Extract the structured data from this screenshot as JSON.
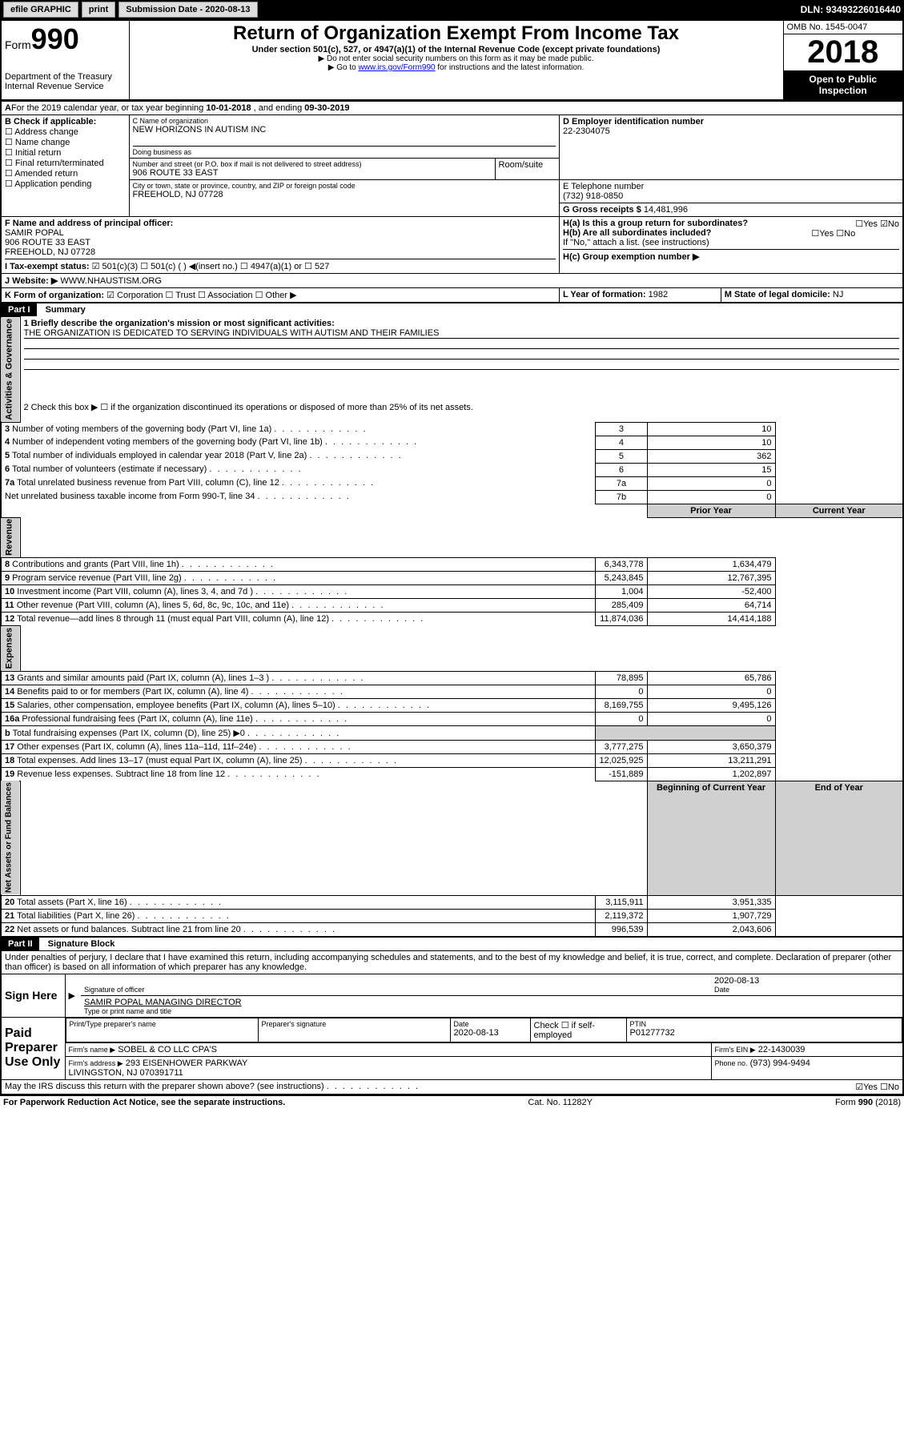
{
  "header": {
    "efile": "efile GRAPHIC",
    "print": "print",
    "sub_label": "Submission Date - 2020-08-13",
    "dln": "DLN: 93493226016440"
  },
  "form": {
    "form_label": "Form",
    "form_num": "990",
    "dept": "Department of the Treasury\nInternal Revenue Service",
    "title": "Return of Organization Exempt From Income Tax",
    "subtitle": "Under section 501(c), 527, or 4947(a)(1) of the Internal Revenue Code (except private foundations)",
    "note1": "▶ Do not enter social security numbers on this form as it may be made public.",
    "note2_a": "▶ Go to ",
    "note2_link": "www.irs.gov/Form990",
    "note2_b": " for instructions and the latest information.",
    "omb": "OMB No. 1545-0047",
    "year": "2018",
    "open": "Open to Public Inspection"
  },
  "A": {
    "text_a": "For the 2019 calendar year, or tax year beginning ",
    "begin": "10-01-2018",
    "text_b": " , and ending ",
    "end": "09-30-2019"
  },
  "B": {
    "label": "B Check if applicable:",
    "opts": [
      "☐ Address change",
      "☐ Name change",
      "☐ Initial return",
      "☐ Final return/terminated",
      "☐ Amended return",
      "☐ Application pending"
    ]
  },
  "C": {
    "name_label": "C Name of organization",
    "name": "NEW HORIZONS IN AUTISM INC",
    "dba_label": "Doing business as",
    "street_label": "Number and street (or P.O. box if mail is not delivered to street address)",
    "room_label": "Room/suite",
    "street": "906 ROUTE 33 EAST",
    "city_label": "City or town, state or province, country, and ZIP or foreign postal code",
    "city": "FREEHOLD, NJ 07728"
  },
  "D": {
    "label": "D Employer identification number",
    "val": "22-2304075"
  },
  "E": {
    "label": "E Telephone number",
    "val": "(732) 918-0850"
  },
  "G": {
    "label": "G Gross receipts $",
    "val": "14,481,996"
  },
  "F": {
    "label": "F  Name and address of principal officer:",
    "name": "SAMIR POPAL",
    "street": "906 ROUTE 33 EAST",
    "city": "FREEHOLD, NJ  07728"
  },
  "H": {
    "a": "H(a)  Is this a group return for subordinates?",
    "a_ans": "☐Yes ☑No",
    "b": "H(b) Are all subordinates included?",
    "b_ans": "☐Yes ☐No",
    "b_note": "If \"No,\" attach a list. (see instructions)",
    "c": "H(c)  Group exemption number ▶"
  },
  "I": {
    "label": "I   Tax-exempt status:",
    "opts": "☑ 501(c)(3)   ☐ 501(c) (  ) ◀(insert no.)     ☐ 4947(a)(1) or   ☐ 527"
  },
  "J": {
    "label": "J  Website: ▶",
    "val": "WWW.NHAUSTISM.ORG"
  },
  "K": {
    "label": "K Form of organization:",
    "opts": "☑ Corporation  ☐ Trust  ☐ Association  ☐ Other ▶"
  },
  "L": {
    "label": "L Year of formation:",
    "val": "1982"
  },
  "M": {
    "label": "M State of legal domicile:",
    "val": "NJ"
  },
  "part1": {
    "label": "Part I",
    "title": "Summary",
    "q1": "1  Briefly describe the organization's mission or most significant activities:",
    "q1_ans": "THE ORGANIZATION IS DEDICATED TO SERVING INDIVIDUALS WITH AUTISM AND THEIR FAMILIES",
    "q2": "2   Check this box ▶ ☐ if the organization discontinued its operations or disposed of more than 25% of its net assets.",
    "side_act": "Activities & Governance",
    "side_rev": "Revenue",
    "side_exp": "Expenses",
    "side_net": "Net Assets or Fund Balances",
    "hdr_prior": "Prior Year",
    "hdr_curr": "Current Year",
    "hdr_boy": "Beginning of Current Year",
    "hdr_eoy": "End of Year",
    "rows_gov": [
      {
        "n": "3",
        "t": "Number of voting members of the governing body (Part VI, line 1a)",
        "b": "3",
        "v": "10"
      },
      {
        "n": "4",
        "t": "Number of independent voting members of the governing body (Part VI, line 1b)",
        "b": "4",
        "v": "10"
      },
      {
        "n": "5",
        "t": "Total number of individuals employed in calendar year 2018 (Part V, line 2a)",
        "b": "5",
        "v": "362"
      },
      {
        "n": "6",
        "t": "Total number of volunteers (estimate if necessary)",
        "b": "6",
        "v": "15"
      },
      {
        "n": "7a",
        "t": "Total unrelated business revenue from Part VIII, column (C), line 12",
        "b": "7a",
        "v": "0"
      },
      {
        "n": "",
        "t": "Net unrelated business taxable income from Form 990-T, line 34",
        "b": "7b",
        "v": "0"
      }
    ],
    "rows_rev": [
      {
        "n": "8",
        "t": "Contributions and grants (Part VIII, line 1h)",
        "p": "6,343,778",
        "c": "1,634,479"
      },
      {
        "n": "9",
        "t": "Program service revenue (Part VIII, line 2g)",
        "p": "5,243,845",
        "c": "12,767,395"
      },
      {
        "n": "10",
        "t": "Investment income (Part VIII, column (A), lines 3, 4, and 7d )",
        "p": "1,004",
        "c": "-52,400"
      },
      {
        "n": "11",
        "t": "Other revenue (Part VIII, column (A), lines 5, 6d, 8c, 9c, 10c, and 11e)",
        "p": "285,409",
        "c": "64,714"
      },
      {
        "n": "12",
        "t": "Total revenue—add lines 8 through 11 (must equal Part VIII, column (A), line 12)",
        "p": "11,874,036",
        "c": "14,414,188"
      }
    ],
    "rows_exp": [
      {
        "n": "13",
        "t": "Grants and similar amounts paid (Part IX, column (A), lines 1–3 )",
        "p": "78,895",
        "c": "65,786"
      },
      {
        "n": "14",
        "t": "Benefits paid to or for members (Part IX, column (A), line 4)",
        "p": "0",
        "c": "0"
      },
      {
        "n": "15",
        "t": "Salaries, other compensation, employee benefits (Part IX, column (A), lines 5–10)",
        "p": "8,169,755",
        "c": "9,495,126"
      },
      {
        "n": "16a",
        "t": "Professional fundraising fees (Part IX, column (A), line 11e)",
        "p": "0",
        "c": "0"
      },
      {
        "n": "b",
        "t": "Total fundraising expenses (Part IX, column (D), line 25) ▶0",
        "p": "",
        "c": ""
      },
      {
        "n": "17",
        "t": "Other expenses (Part IX, column (A), lines 11a–11d, 11f–24e)",
        "p": "3,777,275",
        "c": "3,650,379"
      },
      {
        "n": "18",
        "t": "Total expenses. Add lines 13–17 (must equal Part IX, column (A), line 25)",
        "p": "12,025,925",
        "c": "13,211,291"
      },
      {
        "n": "19",
        "t": "Revenue less expenses. Subtract line 18 from line 12",
        "p": "-151,889",
        "c": "1,202,897"
      }
    ],
    "rows_net": [
      {
        "n": "20",
        "t": "Total assets (Part X, line 16)",
        "p": "3,115,911",
        "c": "3,951,335"
      },
      {
        "n": "21",
        "t": "Total liabilities (Part X, line 26)",
        "p": "2,119,372",
        "c": "1,907,729"
      },
      {
        "n": "22",
        "t": "Net assets or fund balances. Subtract line 21 from line 20",
        "p": "996,539",
        "c": "2,043,606"
      }
    ]
  },
  "part2": {
    "label": "Part II",
    "title": "Signature Block",
    "perjury": "Under penalties of perjury, I declare that I have examined this return, including accompanying schedules and statements, and to the best of my knowledge and belief, it is true, correct, and complete. Declaration of preparer (other than officer) is based on all information of which preparer has any knowledge.",
    "sign_here": "Sign Here",
    "sig_officer": "Signature of officer",
    "sig_date": "2020-08-13",
    "sig_date_label": "Date",
    "sig_name": "SAMIR POPAL MANAGING DIRECTOR",
    "sig_name_label": "Type or print name and title",
    "paid": "Paid Preparer Use Only",
    "prep_name_label": "Print/Type preparer's name",
    "prep_sig_label": "Preparer's signature",
    "prep_date_label": "Date",
    "prep_date": "2020-08-13",
    "prep_check": "Check ☐ if self-employed",
    "ptin_label": "PTIN",
    "ptin": "P01277732",
    "firm_name_label": "Firm's name    ▶",
    "firm_name": "SOBEL & CO LLC CPA'S",
    "firm_ein_label": "Firm's EIN ▶",
    "firm_ein": "22-1430039",
    "firm_addr_label": "Firm's address ▶",
    "firm_addr": "293 EISENHOWER PARKWAY\nLIVINGSTON, NJ  070391711",
    "firm_phone_label": "Phone no.",
    "firm_phone": "(973) 994-9494",
    "discuss": "May the IRS discuss this return with the preparer shown above? (see instructions)",
    "discuss_ans": "☑Yes  ☐No"
  },
  "footer": {
    "left": "For Paperwork Reduction Act Notice, see the separate instructions.",
    "mid": "Cat. No. 11282Y",
    "right": "Form 990 (2018)"
  }
}
